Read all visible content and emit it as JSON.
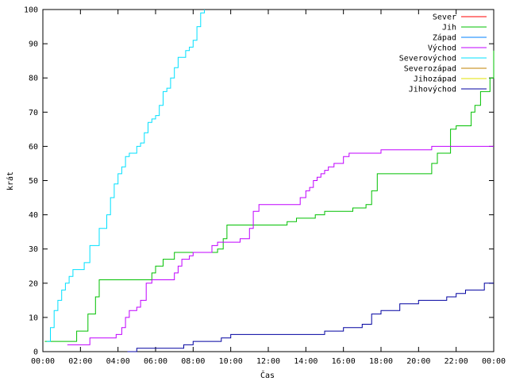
{
  "chart_data": {
    "type": "line",
    "title": "",
    "xlabel": "Čas",
    "ylabel": "krát",
    "xlim": [
      0,
      24
    ],
    "ylim": [
      0,
      100
    ],
    "grid": false,
    "legend_position": "top-right",
    "x_ticks": [
      "00:00",
      "02:00",
      "04:00",
      "06:00",
      "08:00",
      "10:00",
      "12:00",
      "14:00",
      "16:00",
      "18:00",
      "20:00",
      "22:00",
      "00:00"
    ],
    "y_ticks": [
      "0",
      "10",
      "20",
      "30",
      "40",
      "50",
      "60",
      "70",
      "80",
      "90",
      "100"
    ],
    "series": [
      {
        "name": "Sever",
        "color": "#ff0000",
        "x": [],
        "y": []
      },
      {
        "name": "Jih",
        "color": "#00c000",
        "x": [
          0.1,
          1.6,
          1.8,
          2.4,
          2.6,
          2.8,
          3.0,
          4.0,
          4.5,
          5.5,
          5.8,
          6.0,
          6.2,
          6.4,
          6.8,
          7.0,
          8.0,
          9.0,
          9.3,
          9.6,
          9.8,
          10.0,
          11.0,
          13.0,
          13.5,
          14.0,
          14.5,
          15.0,
          15.5,
          16.0,
          16.5,
          17.0,
          17.2,
          17.4,
          17.5,
          17.8,
          18.0,
          19.0,
          20.0,
          20.5,
          20.7,
          21.0,
          21.3,
          21.7,
          22.0,
          22.5,
          22.8,
          23.0,
          23.3,
          23.5,
          23.8,
          24.0
        ],
        "y": [
          3,
          3,
          6,
          11,
          11,
          16,
          21,
          21,
          21,
          21,
          23,
          25,
          25,
          27,
          27,
          29,
          29,
          29,
          30,
          33,
          37,
          37,
          37,
          38,
          39,
          39,
          40,
          41,
          41,
          41,
          42,
          42,
          43,
          43,
          47,
          52,
          52,
          52,
          52,
          52,
          55,
          58,
          58,
          65,
          66,
          66,
          70,
          72,
          76,
          76,
          80,
          88
        ]
      },
      {
        "name": "Západ",
        "color": "#0080ff",
        "x": [],
        "y": []
      },
      {
        "name": "Východ",
        "color": "#c000ff",
        "x": [
          1.3,
          2.2,
          2.5,
          3.5,
          3.9,
          4.2,
          4.4,
          4.6,
          5.0,
          5.2,
          5.5,
          5.8,
          6.0,
          6.5,
          7.0,
          7.2,
          7.4,
          7.8,
          8.0,
          8.6,
          9.0,
          9.3,
          9.6,
          9.9,
          10.5,
          11.0,
          11.2,
          11.5,
          12.0,
          13.0,
          13.5,
          13.7,
          14.0,
          14.2,
          14.4,
          14.6,
          14.8,
          15.0,
          15.2,
          15.5,
          16.0,
          16.3,
          16.6,
          17.0,
          18.0,
          19.0,
          20.0,
          20.7,
          21.0,
          22.0,
          24.0
        ],
        "y": [
          2,
          2,
          4,
          4,
          5,
          7,
          10,
          12,
          13,
          15,
          20,
          21,
          21,
          21,
          23,
          25,
          27,
          28,
          29,
          29,
          31,
          32,
          32,
          32,
          33,
          36,
          41,
          43,
          43,
          43,
          43,
          45,
          47,
          48,
          50,
          51,
          52,
          53,
          54,
          55,
          57,
          58,
          58,
          58,
          59,
          59,
          59,
          60,
          60,
          60,
          60
        ]
      },
      {
        "name": "Severovýchod",
        "color": "#00e0ff",
        "x": [
          0.2,
          0.4,
          0.6,
          0.8,
          1.0,
          1.2,
          1.4,
          1.6,
          2.0,
          2.2,
          2.5,
          3.0,
          3.2,
          3.4,
          3.6,
          3.8,
          4.0,
          4.2,
          4.4,
          4.6,
          4.8,
          5.0,
          5.2,
          5.4,
          5.6,
          5.8,
          6.0,
          6.2,
          6.4,
          6.6,
          6.8,
          7.0,
          7.2,
          7.4,
          7.6,
          7.8,
          8.0,
          8.2,
          8.4,
          8.6
        ],
        "y": [
          3,
          7,
          12,
          15,
          18,
          20,
          22,
          24,
          24,
          26,
          31,
          36,
          36,
          40,
          45,
          49,
          52,
          54,
          57,
          58,
          58,
          60,
          61,
          64,
          67,
          68,
          69,
          72,
          76,
          77,
          80,
          83,
          86,
          86,
          88,
          89,
          91,
          95,
          99,
          100
        ]
      },
      {
        "name": "Severozápad",
        "color": "#c08000",
        "x": [],
        "y": []
      },
      {
        "name": "Jihozápad",
        "color": "#e0e000",
        "x": [],
        "y": []
      },
      {
        "name": "Jihovýchod",
        "color": "#0000a0",
        "x": [
          4.5,
          5.0,
          6.0,
          7.0,
          7.5,
          8.0,
          9.0,
          9.5,
          10.0,
          12.0,
          14.0,
          15.0,
          16.0,
          17.0,
          17.5,
          18.0,
          19.0,
          20.0,
          20.5,
          21.0,
          21.5,
          22.0,
          22.5,
          23.0,
          23.5,
          24.0
        ],
        "y": [
          0,
          1,
          1,
          1,
          2,
          3,
          3,
          4,
          5,
          5,
          5,
          6,
          7,
          8,
          11,
          12,
          14,
          15,
          15,
          15,
          16,
          17,
          18,
          18,
          20,
          20
        ]
      }
    ]
  }
}
